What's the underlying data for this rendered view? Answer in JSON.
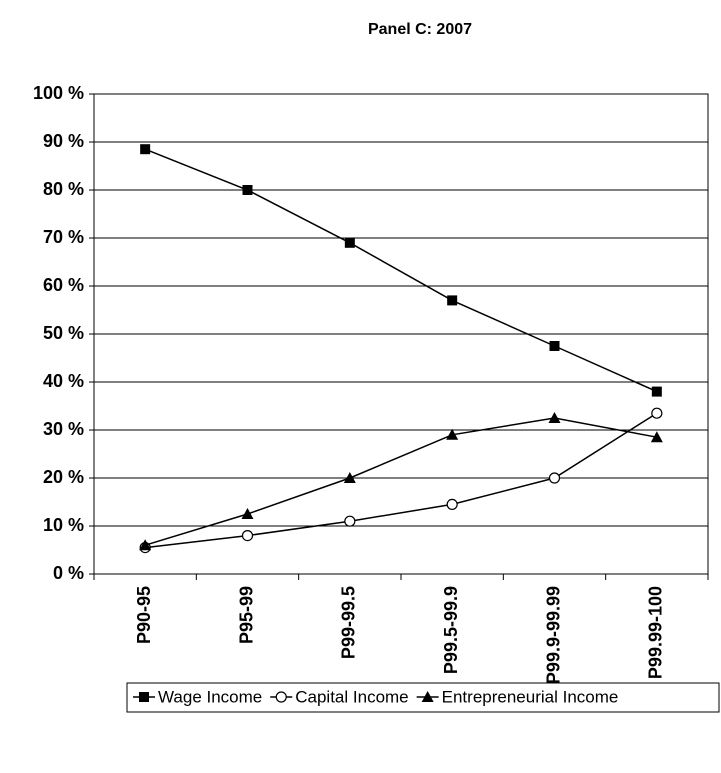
{
  "chart_data": {
    "type": "line",
    "title": "Panel C: 2007",
    "categories": [
      "P90-95",
      "P95-99",
      "P99-99.5",
      "P99.5-99.9",
      "P99.9-99.99",
      "P99.99-100"
    ],
    "series": [
      {
        "name": "Wage Income",
        "color": "#000000",
        "marker": "square",
        "values": [
          88.5,
          80,
          69,
          57,
          47.5,
          38
        ]
      },
      {
        "name": "Capital Income",
        "color": "#000000",
        "marker": "circle",
        "values": [
          5.5,
          8,
          11,
          14.5,
          20,
          33.5
        ]
      },
      {
        "name": "Entrepreneurial Income",
        "color": "#000000",
        "marker": "triangle",
        "values": [
          6,
          12.5,
          20,
          29,
          32.5,
          28.5
        ]
      }
    ],
    "ylim": [
      0,
      100
    ],
    "yticks": [
      {
        "value": 0,
        "label": "0 %"
      },
      {
        "value": 10,
        "label": "10 %"
      },
      {
        "value": 20,
        "label": "20 %"
      },
      {
        "value": 30,
        "label": "30 %"
      },
      {
        "value": 40,
        "label": "40 %"
      },
      {
        "value": 50,
        "label": "50 %"
      },
      {
        "value": 60,
        "label": "60 %"
      },
      {
        "value": 70,
        "label": "70 %"
      },
      {
        "value": 80,
        "label": "80 %"
      },
      {
        "value": 90,
        "label": "90 %"
      },
      {
        "value": 100,
        "label": "100 %"
      }
    ],
    "grid": true,
    "legend": "bottom"
  }
}
